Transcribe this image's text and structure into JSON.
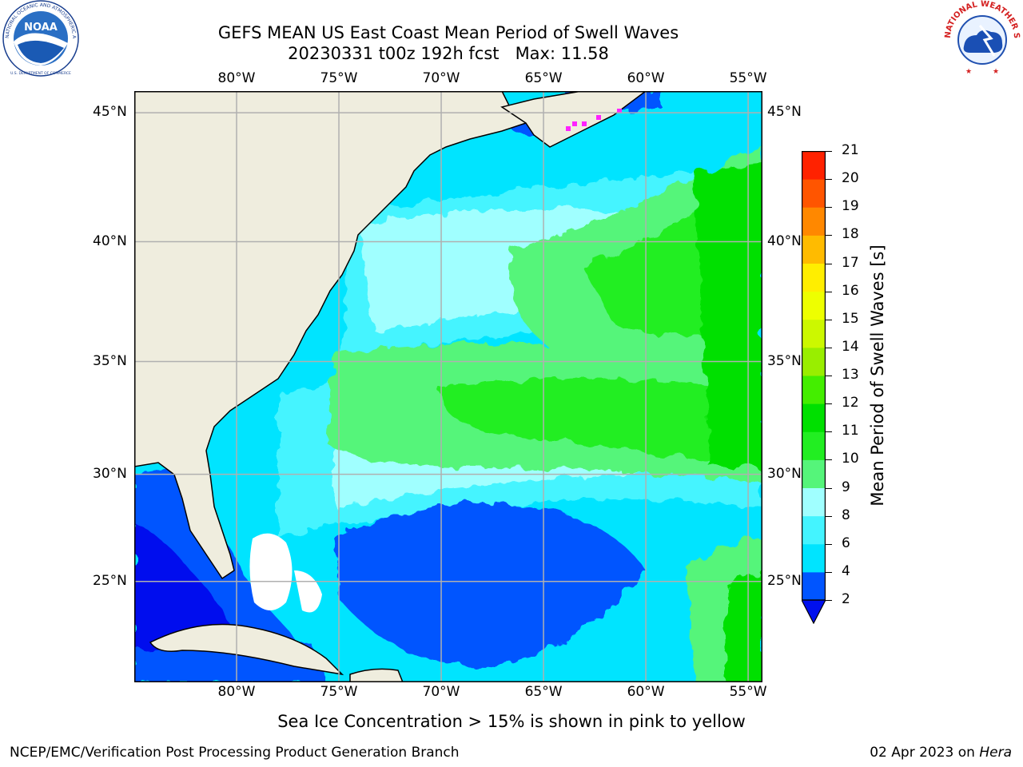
{
  "title": {
    "line1": "GEFS MEAN US East Coast Mean Period of Swell Waves",
    "line2": "20230331 t00z 192h fcst   Max: 11.58"
  },
  "logos": {
    "left": "noaa-logo",
    "right": "nws-logo",
    "left_ring_text": "NATIONAL OCEANIC AND ATMOSPHERIC ADMINISTRATION",
    "left_center_text": "NOAA",
    "left_bottom_text": "U.S. DEPARTMENT OF COMMERCE",
    "right_ring_text": "NATIONAL WEATHER SERVICE"
  },
  "map": {
    "lon_labels": [
      "80°W",
      "75°W",
      "70°W",
      "65°W",
      "60°W",
      "55°W"
    ],
    "lon_values": [
      -80,
      -75,
      -70,
      -65,
      -60,
      -55
    ],
    "lat_labels": [
      "45°N",
      "40°N",
      "35°N",
      "30°N",
      "25°N"
    ],
    "lat_values": [
      45,
      40,
      35,
      30,
      25
    ],
    "extent": {
      "lon_min": -85,
      "lon_max": -54.3,
      "lat_min": 20.1,
      "lat_max": 45.8
    },
    "grid": true,
    "land_color": "#efedde",
    "grid_color": "#b0b0b0"
  },
  "colorbar": {
    "label": "Mean Period of Swell Waves [s]",
    "ticks": [
      "2",
      "4",
      "6",
      "8",
      "9",
      "10",
      "11",
      "12",
      "13",
      "14",
      "15",
      "16",
      "17",
      "18",
      "19",
      "20",
      "21"
    ],
    "colors": [
      "#0055ff",
      "#00e4ff",
      "#44f4ff",
      "#a0ffff",
      "#55f57a",
      "#22ee22",
      "#00e000",
      "#44ee00",
      "#99ee00",
      "#ccf800",
      "#eeff00",
      "#ffee00",
      "#ffbb00",
      "#ff8800",
      "#ff5500",
      "#ff2200"
    ],
    "under_color": "#0010ee",
    "extend": "min"
  },
  "notes": {
    "sea_ice": "Sea Ice Concentration > 15% is shown in pink to yellow",
    "credit": "NCEP/EMC/Verification Post Processing Product Generation Branch",
    "date": "02 Apr 2023 on ",
    "machine": "Hera"
  }
}
